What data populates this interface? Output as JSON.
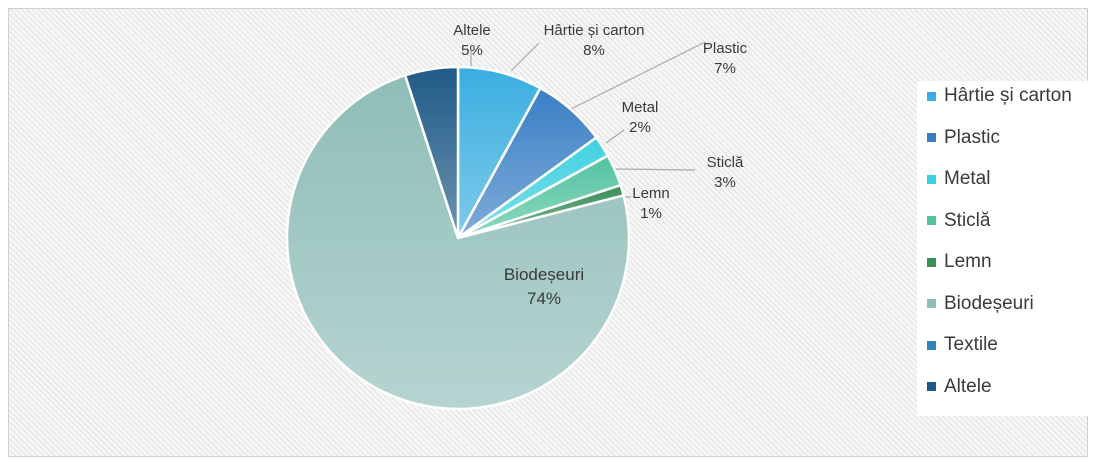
{
  "chart_data": {
    "type": "pie",
    "title": "",
    "slices": [
      {
        "name": "Hârtie și carton",
        "value": 8,
        "label": "8%",
        "color": "#3aaee0"
      },
      {
        "name": "Plastic",
        "value": 7,
        "label": "7%",
        "color": "#3a7fc4"
      },
      {
        "name": "Metal",
        "value": 2,
        "label": "2%",
        "color": "#3fd0e0"
      },
      {
        "name": "Sticlă",
        "value": 3,
        "label": "3%",
        "color": "#52c3a0"
      },
      {
        "name": "Lemn",
        "value": 1,
        "label": "1%",
        "color": "#3a8f5a"
      },
      {
        "name": "Biodeșeuri",
        "value": 74,
        "label": "74%",
        "color": "#8fbdb8"
      },
      {
        "name": "Textile",
        "value": 0,
        "label": "",
        "color": "#2f86b8"
      },
      {
        "name": "Altele",
        "value": 5,
        "label": "5%",
        "color": "#1f5a86"
      }
    ],
    "legend_position": "right"
  }
}
